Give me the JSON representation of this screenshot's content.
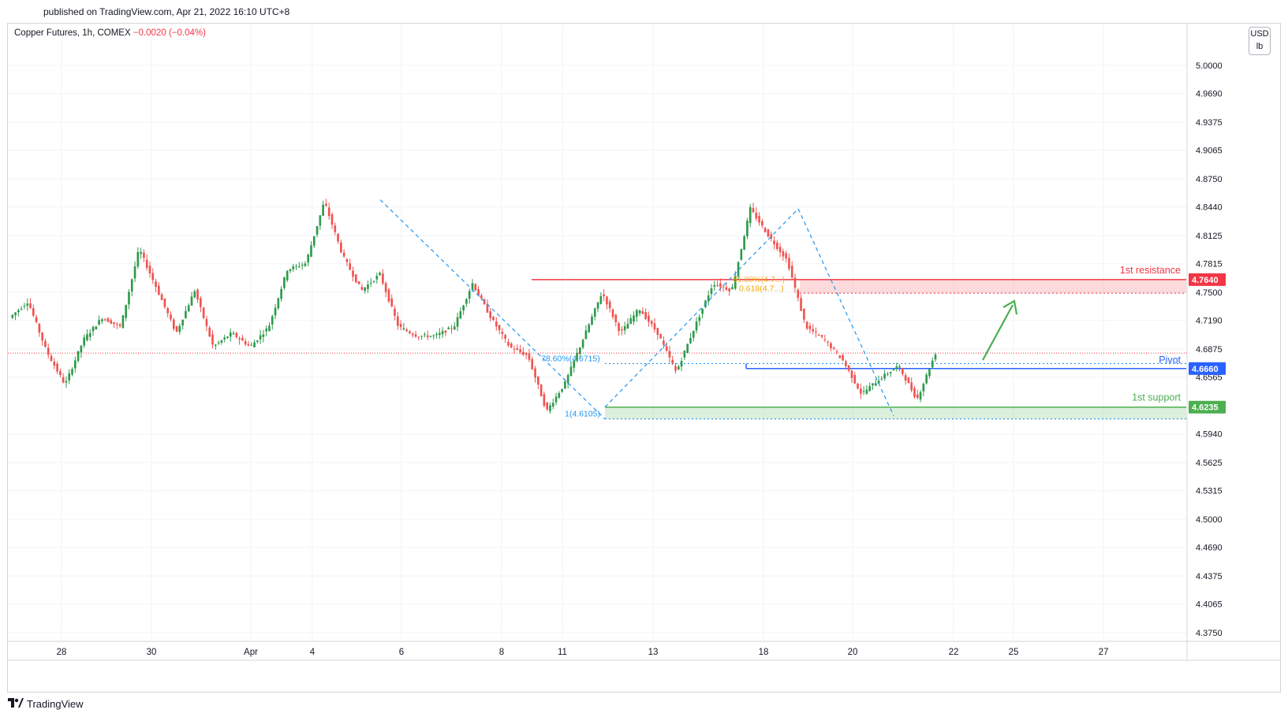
{
  "header": {
    "published": "published on TradingView.com, Apr 21, 2022 16:10 UTC+8"
  },
  "legend": {
    "symbol": "Copper Futures, 1h, COMEX",
    "change": "−0.0020 (−0.04%)"
  },
  "unit_box": {
    "currency": "USD",
    "unit": "lb"
  },
  "branding": {
    "logo_text": "TradingView",
    "logo_icon": "tradingview-logo-icon"
  },
  "colors": {
    "up": "#26a69a",
    "up_candle": "#2e9a4b",
    "down": "#ef5350",
    "resistance": "#f23645",
    "pivot": "#2962ff",
    "support": "#4caf50",
    "fib": "#2196f3",
    "fib_alt": "#f7a600",
    "last_price": "#f23645",
    "grid": "#f0f3fa",
    "arrow": "#4caf50"
  },
  "chart_data": {
    "type": "candlestick",
    "symbol": "Copper Futures",
    "interval": "1h",
    "exchange": "COMEX",
    "ylim": [
      4.365,
      5.044
    ],
    "y_ticks": [
      "5.0000",
      "4.9690",
      "4.9375",
      "4.9065",
      "4.8750",
      "4.8440",
      "4.8125",
      "4.7815",
      "4.7500",
      "4.7190",
      "4.6875",
      "4.6565",
      "4.5940",
      "4.5625",
      "4.5315",
      "4.5000",
      "4.4690",
      "4.4375",
      "4.4065",
      "4.3750"
    ],
    "y_tick_values": [
      5.0,
      4.969,
      4.9375,
      4.9065,
      4.875,
      4.844,
      4.8125,
      4.7815,
      4.75,
      4.719,
      4.6875,
      4.6565,
      4.594,
      4.5625,
      4.5315,
      4.5,
      4.469,
      4.4375,
      4.4065,
      4.375
    ],
    "x_ticks": [
      "28",
      "30",
      "Apr",
      "4",
      "6",
      "8",
      "11",
      "13",
      "18",
      "20",
      "22",
      "25",
      "27"
    ],
    "series_anchor_points": [
      {
        "t": "Mar 27",
        "p": 4.722
      },
      {
        "t": "Mar 28",
        "p": 4.74
      },
      {
        "t": "Mar 28",
        "p": 4.685
      },
      {
        "t": "Mar 29",
        "p": 4.648
      },
      {
        "t": "Mar 29",
        "p": 4.698
      },
      {
        "t": "Mar 30",
        "p": 4.722
      },
      {
        "t": "Mar 30",
        "p": 4.712
      },
      {
        "t": "Mar 31",
        "p": 4.798
      },
      {
        "t": "Mar 31",
        "p": 4.752
      },
      {
        "t": "Apr 1",
        "p": 4.705
      },
      {
        "t": "Apr 1",
        "p": 4.752
      },
      {
        "t": "Apr 2",
        "p": 4.69
      },
      {
        "t": "Apr 3",
        "p": 4.705
      },
      {
        "t": "Apr 4",
        "p": 4.69
      },
      {
        "t": "Apr 4",
        "p": 4.712
      },
      {
        "t": "Apr 5",
        "p": 4.775
      },
      {
        "t": "Apr 5",
        "p": 4.782
      },
      {
        "t": "Apr 6",
        "p": 4.85
      },
      {
        "t": "Apr 6",
        "p": 4.79
      },
      {
        "t": "Apr 7",
        "p": 4.752
      },
      {
        "t": "Apr 7",
        "p": 4.77
      },
      {
        "t": "Apr 8",
        "p": 4.712
      },
      {
        "t": "Apr 8",
        "p": 4.702
      },
      {
        "t": "Apr 9",
        "p": 4.702
      },
      {
        "t": "Apr 10",
        "p": 4.712
      },
      {
        "t": "Apr 11",
        "p": 4.76
      },
      {
        "t": "Apr 11",
        "p": 4.722
      },
      {
        "t": "Apr 12",
        "p": 4.69
      },
      {
        "t": "Apr 12",
        "p": 4.68
      },
      {
        "t": "Apr 12",
        "p": 4.619
      },
      {
        "t": "Apr 13",
        "p": 4.65
      },
      {
        "t": "Apr 13",
        "p": 4.7
      },
      {
        "t": "Apr 14",
        "p": 4.75
      },
      {
        "t": "Apr 14",
        "p": 4.705
      },
      {
        "t": "Apr 15",
        "p": 4.732
      },
      {
        "t": "Apr 15",
        "p": 4.705
      },
      {
        "t": "Apr 17",
        "p": 4.662
      },
      {
        "t": "Apr 18",
        "p": 4.712
      },
      {
        "t": "Apr 18",
        "p": 4.76
      },
      {
        "t": "Apr 18",
        "p": 4.752
      },
      {
        "t": "Apr 19",
        "p": 4.842
      },
      {
        "t": "Apr 19",
        "p": 4.812
      },
      {
        "t": "Apr 19",
        "p": 4.785
      },
      {
        "t": "Apr 20",
        "p": 4.712
      },
      {
        "t": "Apr 20",
        "p": 4.698
      },
      {
        "t": "Apr 20",
        "p": 4.675
      },
      {
        "t": "Apr 21",
        "p": 4.638
      },
      {
        "t": "Apr 21",
        "p": 4.655
      },
      {
        "t": "Apr 21",
        "p": 4.669
      },
      {
        "t": "Apr 21",
        "p": 4.632
      },
      {
        "t": "Apr 21",
        "p": 4.683
      }
    ],
    "levels": {
      "resistance": {
        "label": "1st resistance",
        "value": "4.7640"
      },
      "pivot": {
        "label": "Pivot",
        "value": "4.6660"
      },
      "support": {
        "label": "1st support",
        "value": "4.6235"
      }
    },
    "last_price_line": 4.683,
    "fib_labels": {
      "l1": "78.60%(4.6715)",
      "l2": "1(4.6105)",
      "l3": "61.80%(4.7...)",
      "l4": "0.618(4.7...)"
    },
    "zones": {
      "resistance_zone": [
        4.749,
        4.764
      ],
      "support_zone": [
        4.6105,
        4.6235
      ]
    }
  }
}
